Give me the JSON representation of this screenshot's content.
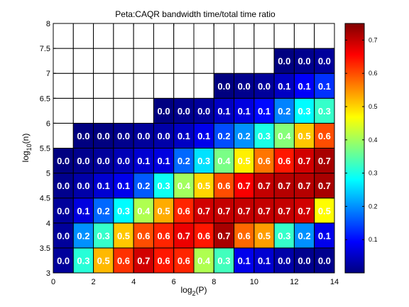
{
  "chart_data": {
    "type": "heatmap",
    "title": "Peta:CAQR bandwidth time/total time ratio",
    "xlabel": {
      "base": "log",
      "sub": "2",
      "rest": "(P)"
    },
    "ylabel": {
      "base": "log",
      "sub": "10",
      "rest": "(n)"
    },
    "xlim": [
      0,
      14
    ],
    "ylim": [
      3,
      8
    ],
    "x_ticks": [
      "0",
      "2",
      "4",
      "6",
      "8",
      "10",
      "12",
      "14"
    ],
    "y_ticks": [
      "3",
      "3.5",
      "4",
      "4.5",
      "5",
      "5.5",
      "6",
      "6.5",
      "7",
      "7.5",
      "8"
    ],
    "colorbar": {
      "colormap": "jet",
      "range": [
        0,
        0.75
      ],
      "tick_values": [
        0.1,
        0.2,
        0.3,
        0.4,
        0.5,
        0.6,
        0.7
      ],
      "tick_labels": [
        "0.1",
        "0.2",
        "0.3",
        "0.4",
        "0.5",
        "0.6",
        "0.7"
      ]
    },
    "cell_x_centers": [
      0.5,
      1.5,
      2.5,
      3.5,
      4.5,
      5.5,
      6.5,
      7.5,
      8.5,
      9.5,
      10.5,
      11.5,
      12.5,
      13.5
    ],
    "cell_y_centers": [
      3.25,
      3.75,
      4.25,
      4.75,
      5.25,
      5.75,
      6.25,
      6.75,
      7.25,
      7.75
    ],
    "values": [
      [
        0.02,
        0.31,
        0.52,
        0.62,
        0.69,
        0.64,
        0.63,
        0.41,
        0.33,
        0.08,
        0.06,
        0.03,
        0.01,
        0.01
      ],
      [
        0.02,
        0.2,
        0.32,
        0.51,
        0.6,
        0.63,
        0.67,
        0.64,
        0.72,
        0.58,
        0.54,
        0.32,
        0.2,
        0.08
      ],
      [
        0.02,
        0.07,
        0.17,
        0.28,
        0.41,
        0.53,
        0.63,
        0.69,
        0.7,
        0.7,
        0.7,
        0.7,
        0.69,
        0.47
      ],
      [
        0.01,
        0.03,
        0.06,
        0.08,
        0.16,
        0.29,
        0.4,
        0.5,
        0.6,
        0.66,
        0.7,
        0.71,
        0.71,
        0.72
      ],
      [
        0.0,
        0.01,
        0.02,
        0.04,
        0.06,
        0.07,
        0.17,
        0.26,
        0.37,
        0.48,
        0.57,
        0.64,
        0.69,
        0.72
      ],
      [
        null,
        0.0,
        0.0,
        0.01,
        0.02,
        0.03,
        0.05,
        0.08,
        0.15,
        0.2,
        0.3,
        0.38,
        0.51,
        0.6
      ],
      [
        null,
        null,
        null,
        null,
        null,
        0.0,
        0.01,
        0.02,
        0.05,
        0.07,
        0.1,
        0.19,
        0.28,
        0.32
      ],
      [
        null,
        null,
        null,
        null,
        null,
        null,
        null,
        null,
        0.0,
        0.01,
        0.02,
        0.05,
        0.09,
        0.13
      ],
      [
        null,
        null,
        null,
        null,
        null,
        null,
        null,
        null,
        null,
        null,
        null,
        0.0,
        0.01,
        0.02
      ],
      [
        null,
        null,
        null,
        null,
        null,
        null,
        null,
        null,
        null,
        null,
        null,
        null,
        null,
        null
      ]
    ],
    "labels": [
      [
        "0.0",
        "0.3",
        "0.5",
        "0.6",
        "0.7",
        "0.6",
        "0.6",
        "0.4",
        "0.3",
        "0.1",
        "0.1",
        "0.0",
        "0.0",
        "0.0"
      ],
      [
        "0.0",
        "0.2",
        "0.3",
        "0.5",
        "0.6",
        "0.6",
        "0.7",
        "0.6",
        "0.7",
        "0.6",
        "0.5",
        "0.3",
        "0.2",
        "0.1"
      ],
      [
        "0.0",
        "0.1",
        "0.2",
        "0.3",
        "0.4",
        "0.5",
        "0.6",
        "0.7",
        "0.7",
        "0.7",
        "0.7",
        "0.7",
        "0.7",
        "0.5"
      ],
      [
        "0.0",
        "0.0",
        "0.1",
        "0.1",
        "0.2",
        "0.3",
        "0.4",
        "0.5",
        "0.6",
        "0.7",
        "0.7",
        "0.7",
        "0.7",
        "0.7"
      ],
      [
        "0.0",
        "0.0",
        "0.0",
        "0.0",
        "0.1",
        "0.1",
        "0.2",
        "0.3",
        "0.4",
        "0.5",
        "0.6",
        "0.6",
        "0.7",
        "0.7"
      ],
      [
        null,
        "0.0",
        "0.0",
        "0.0",
        "0.0",
        "0.0",
        "0.1",
        "0.1",
        "0.2",
        "0.2",
        "0.3",
        "0.4",
        "0.5",
        "0.6"
      ],
      [
        null,
        null,
        null,
        null,
        null,
        "0.0",
        "0.0",
        "0.0",
        "0.1",
        "0.1",
        "0.1",
        "0.2",
        "0.3",
        "0.3"
      ],
      [
        null,
        null,
        null,
        null,
        null,
        null,
        null,
        null,
        "0.0",
        "0.0",
        "0.0",
        "0.1",
        "0.1",
        "0.1"
      ],
      [
        null,
        null,
        null,
        null,
        null,
        null,
        null,
        null,
        null,
        null,
        null,
        "0.0",
        "0.0",
        "0.0"
      ],
      [
        null,
        null,
        null,
        null,
        null,
        null,
        null,
        null,
        null,
        null,
        null,
        null,
        null,
        null
      ]
    ],
    "empty_cell_color": "#ffffff",
    "grid": true,
    "legend": "none"
  }
}
